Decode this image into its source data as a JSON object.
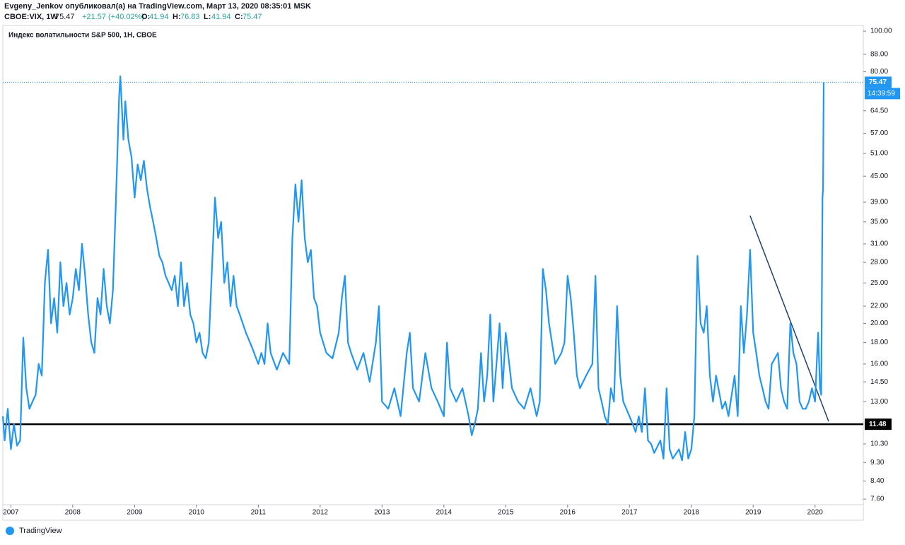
{
  "header": {
    "publisher": "Evgeny_Jenkov опубликовал(а) на TradingView.com, Март 13, 2020 08:35:01 MSK",
    "symbol": "CBOE:VIX, 1W",
    "last": "75.47",
    "change": "+21.57 (+40.02%)",
    "ohlc": [
      {
        "label": "O:",
        "value": "41.94"
      },
      {
        "label": "H:",
        "value": "76.83"
      },
      {
        "label": "L:",
        "value": "41.94"
      },
      {
        "label": "C:",
        "value": "75.47"
      }
    ]
  },
  "footer": {
    "brand": "TradingView"
  },
  "chart_data": {
    "type": "line",
    "title": "Индекс волатильности S&P 500, 1Н, CBOE",
    "log_scale": true,
    "xlim": [
      2006.87,
      2020.78
    ],
    "ylim": [
      7.37,
      103.2
    ],
    "xticks": [
      2007,
      2008,
      2009,
      2010,
      2011,
      2012,
      2013,
      2014,
      2015,
      2016,
      2017,
      2018,
      2019,
      2020
    ],
    "yticks": [
      {
        "value": 7.6,
        "label": "7.60"
      },
      {
        "value": 8.4,
        "label": "8.40"
      },
      {
        "value": 9.3,
        "label": "9.30"
      },
      {
        "value": 10.3,
        "label": "10.30"
      },
      {
        "value": 13,
        "label": "13.00"
      },
      {
        "value": 14.5,
        "label": "14.50"
      },
      {
        "value": 16,
        "label": "16.00"
      },
      {
        "value": 18,
        "label": "18.00"
      },
      {
        "value": 20,
        "label": "20.00"
      },
      {
        "value": 22,
        "label": "22.00"
      },
      {
        "value": 25,
        "label": "25.00"
      },
      {
        "value": 28,
        "label": "28.00"
      },
      {
        "value": 31,
        "label": "31.00"
      },
      {
        "value": 35,
        "label": "35.00"
      },
      {
        "value": 39,
        "label": "39.00"
      },
      {
        "value": 45,
        "label": "45.00"
      },
      {
        "value": 51,
        "label": "51.00"
      },
      {
        "value": 57,
        "label": "57.00"
      },
      {
        "value": 64.5,
        "label": "64.50"
      },
      {
        "value": 80,
        "label": "80.00"
      },
      {
        "value": 88,
        "label": "88.00"
      },
      {
        "value": 100,
        "label": "100.00"
      }
    ],
    "hline": {
      "value": 11.48,
      "label": "11.48",
      "color": "#000000"
    },
    "trendline": {
      "x": [
        2018.95,
        2020.22
      ],
      "y": [
        36.2,
        11.66
      ],
      "color": "#1f3f6e"
    },
    "countdown": "14:39:59",
    "x": [
      2006.87,
      2006.9,
      2006.95,
      2007.0,
      2007.05,
      2007.1,
      2007.15,
      2007.2,
      2007.25,
      2007.3,
      2007.35,
      2007.4,
      2007.45,
      2007.5,
      2007.55,
      2007.6,
      2007.65,
      2007.7,
      2007.75,
      2007.8,
      2007.85,
      2007.9,
      2007.95,
      2008.0,
      2008.05,
      2008.1,
      2008.15,
      2008.2,
      2008.25,
      2008.3,
      2008.35,
      2008.4,
      2008.45,
      2008.5,
      2008.55,
      2008.6,
      2008.65,
      2008.7,
      2008.75,
      2008.77,
      2008.82,
      2008.85,
      2008.9,
      2008.95,
      2009.0,
      2009.05,
      2009.1,
      2009.15,
      2009.2,
      2009.25,
      2009.3,
      2009.35,
      2009.4,
      2009.45,
      2009.5,
      2009.55,
      2009.6,
      2009.65,
      2009.7,
      2009.75,
      2009.8,
      2009.85,
      2009.9,
      2009.95,
      2010.0,
      2010.05,
      2010.1,
      2010.15,
      2010.2,
      2010.3,
      2010.35,
      2010.4,
      2010.45,
      2010.5,
      2010.55,
      2010.6,
      2010.65,
      2010.7,
      2010.8,
      2010.9,
      2011.0,
      2011.05,
      2011.1,
      2011.15,
      2011.2,
      2011.3,
      2011.4,
      2011.5,
      2011.55,
      2011.6,
      2011.65,
      2011.7,
      2011.75,
      2011.8,
      2011.85,
      2011.9,
      2011.95,
      2012.0,
      2012.1,
      2012.2,
      2012.3,
      2012.35,
      2012.4,
      2012.45,
      2012.5,
      2012.6,
      2012.7,
      2012.8,
      2012.9,
      2012.95,
      2013.0,
      2013.1,
      2013.2,
      2013.3,
      2013.4,
      2013.45,
      2013.5,
      2013.6,
      2013.7,
      2013.8,
      2013.9,
      2014.0,
      2014.05,
      2014.1,
      2014.2,
      2014.3,
      2014.4,
      2014.45,
      2014.5,
      2014.55,
      2014.6,
      2014.65,
      2014.7,
      2014.75,
      2014.8,
      2014.85,
      2014.9,
      2014.95,
      2015.0,
      2015.1,
      2015.2,
      2015.3,
      2015.4,
      2015.5,
      2015.55,
      2015.6,
      2015.65,
      2015.7,
      2015.8,
      2015.9,
      2015.95,
      2016.0,
      2016.05,
      2016.1,
      2016.15,
      2016.2,
      2016.3,
      2016.4,
      2016.45,
      2016.5,
      2016.55,
      2016.6,
      2016.65,
      2016.7,
      2016.75,
      2016.8,
      2016.85,
      2016.9,
      2017.0,
      2017.05,
      2017.1,
      2017.15,
      2017.2,
      2017.25,
      2017.3,
      2017.35,
      2017.4,
      2017.5,
      2017.55,
      2017.6,
      2017.65,
      2017.7,
      2017.8,
      2017.85,
      2017.9,
      2017.95,
      2018.0,
      2018.05,
      2018.1,
      2018.15,
      2018.2,
      2018.25,
      2018.3,
      2018.35,
      2018.4,
      2018.5,
      2018.55,
      2018.6,
      2018.7,
      2018.75,
      2018.8,
      2018.85,
      2018.9,
      2018.95,
      2019.0,
      2019.05,
      2019.1,
      2019.15,
      2019.2,
      2019.25,
      2019.3,
      2019.4,
      2019.45,
      2019.5,
      2019.55,
      2019.6,
      2019.65,
      2019.7,
      2019.75,
      2019.8,
      2019.85,
      2019.9,
      2019.95,
      2020.0,
      2020.05,
      2020.08,
      2020.1,
      2020.12,
      2020.13,
      2020.14
    ],
    "series": [
      {
        "name": "CBOE:VIX",
        "color": "#2196f3",
        "values": [
          12,
          10.5,
          12.5,
          10,
          11.5,
          10.2,
          10.5,
          18.5,
          14,
          12.5,
          13,
          13.5,
          16,
          15,
          25,
          30,
          20,
          23,
          19,
          28,
          22,
          25,
          21,
          23,
          27,
          24,
          31,
          26,
          21,
          18,
          17,
          23,
          21,
          27,
          22,
          20,
          24,
          40,
          70,
          78,
          55,
          68,
          55,
          50,
          40,
          48,
          44,
          49,
          42,
          38,
          35,
          32,
          29,
          28,
          26,
          25,
          24,
          26,
          22,
          28,
          22,
          25,
          21,
          20,
          18,
          19,
          17,
          16.5,
          18,
          40,
          32,
          35,
          25,
          28,
          22,
          26,
          22,
          21,
          19,
          17.5,
          16,
          17,
          16,
          20,
          17,
          15.5,
          17,
          16,
          32,
          43,
          35,
          44,
          32,
          28,
          30,
          23,
          22,
          19,
          17,
          16.5,
          19,
          23,
          26,
          18,
          17,
          15.5,
          17,
          14.5,
          18,
          22,
          13,
          12.5,
          14,
          12,
          17,
          19,
          14,
          13,
          17,
          14,
          13,
          12,
          18,
          14,
          13,
          14,
          12,
          10.8,
          11.5,
          12.5,
          17,
          13,
          15,
          21,
          13,
          16,
          20,
          14,
          19,
          14,
          13,
          12.5,
          14,
          12,
          13,
          27,
          24,
          20,
          16,
          17,
          18,
          26,
          23,
          19,
          15,
          14,
          15,
          16,
          26,
          14,
          13,
          12,
          11.5,
          14,
          13,
          22,
          15,
          13,
          12,
          11.5,
          11,
          12,
          11,
          14,
          10.5,
          10.3,
          9.8,
          10.5,
          9.5,
          14,
          10,
          9.5,
          10,
          9.4,
          11,
          9.5,
          10,
          12,
          29,
          20,
          19,
          22,
          15,
          13,
          15,
          12.5,
          13,
          12,
          15,
          12,
          22,
          17,
          21,
          30,
          19,
          17,
          15,
          14,
          13,
          12.5,
          16,
          17,
          14,
          13,
          12.5,
          20,
          17,
          16,
          13,
          12.5,
          12.5,
          13,
          14,
          13,
          19,
          14,
          13.5,
          40,
          42,
          75.47
        ],
        "value_labels": {
          "last": "75.47"
        }
      }
    ]
  }
}
